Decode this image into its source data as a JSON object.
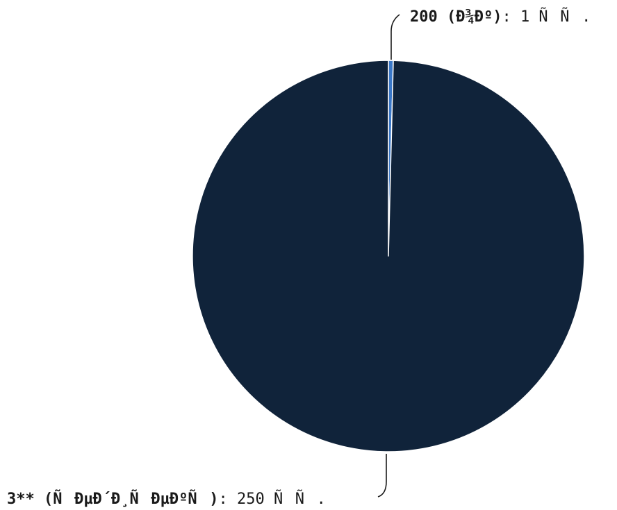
{
  "chart_data": {
    "type": "pie",
    "slices": [
      {
        "name": "200 (Ð¾Ðº)",
        "count_text": ": 1 ÑÑ.",
        "value": 1,
        "color": "#3a78c9"
      },
      {
        "name": "3** (ÑÐµÐ´Ð¸ÑÐµÐºÑ)",
        "count_text": ": 250 ÑÑ.",
        "value": 250,
        "color": "#10233a"
      }
    ],
    "start": "12 o'clock, clockwise",
    "legend": "none"
  }
}
